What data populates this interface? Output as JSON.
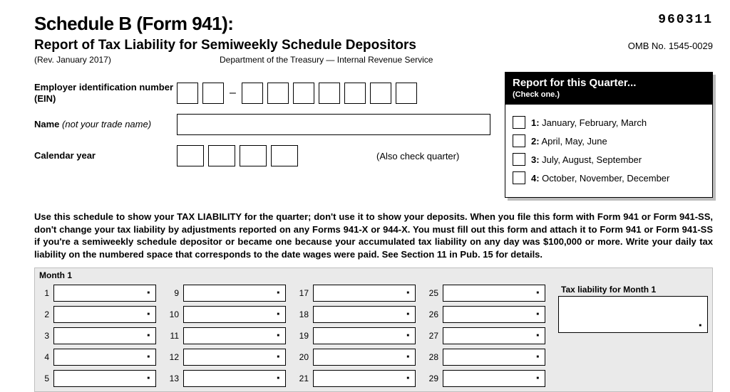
{
  "header": {
    "title": "Schedule B (Form 941):",
    "form_number": "960311",
    "subtitle": "Report of Tax Liability for Semiweekly Schedule Depositors",
    "omb": "OMB No. 1545-0029",
    "revision": "(Rev. January 2017)",
    "department": "Department of the Treasury — Internal Revenue Service"
  },
  "fields": {
    "ein_label": "Employer identification number (EIN)",
    "name_label": "Name ",
    "name_hint": "(not your trade name)",
    "year_label": "Calendar year",
    "also_check": "(Also check quarter)"
  },
  "quarter_panel": {
    "title": "Report for this Quarter...",
    "subtitle": "(Check one.)",
    "options": [
      {
        "num": "1:",
        "text": " January, February, March"
      },
      {
        "num": "2:",
        "text": " April, May, June"
      },
      {
        "num": "3:",
        "text": " July, August, September"
      },
      {
        "num": "4:",
        "text": " October, November, December"
      }
    ]
  },
  "instructions": "Use this schedule to show your TAX LIABILITY for the quarter; don't use it to show your deposits. When you file this form with Form 941 or Form 941-SS, don't change your tax liability by adjustments reported on any Forms 941-X or 944-X. You must fill out this form and attach it to Form 941 or Form 941-SS if you're a semiweekly schedule depositor or became one because your accumulated tax liability on any day was $100,000 or more. Write your daily tax liability on the numbered space that corresponds to the date wages were paid. See Section 11 in Pub. 15 for details.",
  "month": {
    "label": "Month 1",
    "total_label": "Tax liability for Month 1",
    "columns": [
      [
        "1",
        "2",
        "3",
        "4",
        "5"
      ],
      [
        "9",
        "10",
        "11",
        "12",
        "13"
      ],
      [
        "17",
        "18",
        "19",
        "20",
        "21"
      ],
      [
        "25",
        "26",
        "27",
        "28",
        "29"
      ]
    ]
  }
}
